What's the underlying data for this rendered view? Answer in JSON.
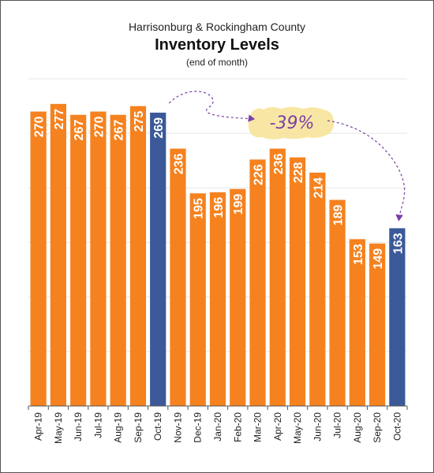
{
  "header": {
    "supertitle": "Harrisonburg & Rockingham County",
    "title": "Inventory Levels",
    "subtitle": "(end of month)"
  },
  "annotation": {
    "text": "-39%",
    "color": "#7b3fa6",
    "highlight": "#f7e49a"
  },
  "colors": {
    "bar": "#f5821f",
    "highlight_bar": "#3b5998",
    "grid": "#e6e6e6",
    "axis": "#555555"
  },
  "chart_data": {
    "type": "bar",
    "title": "Inventory Levels",
    "categories": [
      "Apr-19",
      "May-19",
      "Jun-19",
      "Jul-19",
      "Aug-19",
      "Sep-19",
      "Oct-19",
      "Nov-19",
      "Dec-19",
      "Jan-20",
      "Feb-20",
      "Mar-20",
      "Apr-20",
      "May-20",
      "Jun-20",
      "Jul-20",
      "Aug-20",
      "Sep-20",
      "Oct-20"
    ],
    "values": [
      270,
      277,
      267,
      270,
      267,
      275,
      269,
      236,
      195,
      196,
      199,
      226,
      236,
      228,
      214,
      189,
      153,
      149,
      163
    ],
    "highlighted": [
      "Oct-19",
      "Oct-20"
    ],
    "ylim": [
      0,
      300
    ],
    "grid": true,
    "value_labels": true
  }
}
